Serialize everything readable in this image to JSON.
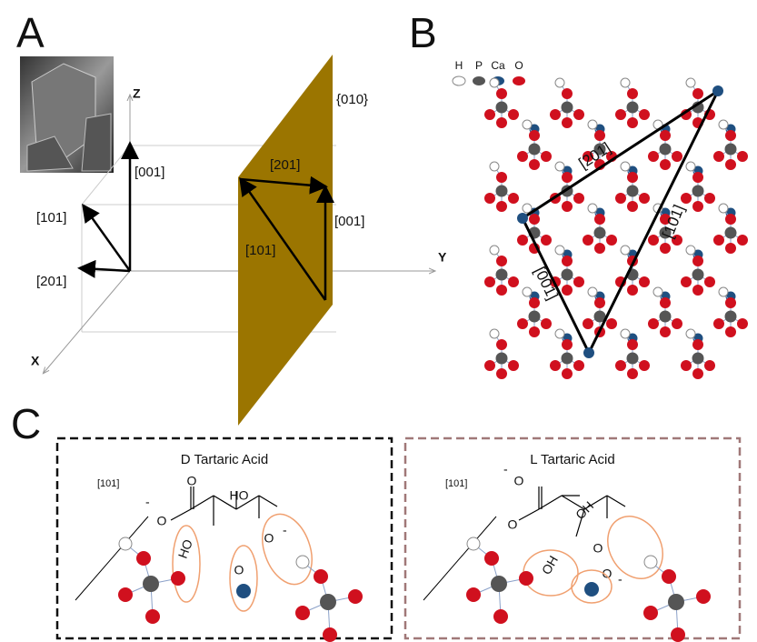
{
  "panel_a": {
    "label": "A",
    "axes": {
      "z": "Z",
      "y": "Y",
      "x": "X"
    },
    "origin_vectors": [
      "[001]",
      "[101]",
      "[201]"
    ],
    "plane_vectors": [
      "[201]",
      "[001]",
      "[101]"
    ],
    "plane": "{010}"
  },
  "panel_b": {
    "label": "B",
    "legend": [
      "H",
      "P",
      "Ca",
      "O"
    ],
    "vectors": [
      "[201]",
      "[101]",
      "[001]"
    ]
  },
  "panel_c": {
    "label": "C",
    "boxes": [
      {
        "title": "D Tartaric Acid",
        "direction": "[101]",
        "groups": [
          "O",
          "O",
          "HO",
          "HO",
          "O",
          "O"
        ],
        "charges": [
          "-",
          "-"
        ]
      },
      {
        "title": "L Tartaric Acid",
        "direction": "[101]",
        "groups": [
          "O",
          "O",
          "OH",
          "OH",
          "O",
          "O"
        ],
        "charges": [
          "-",
          "-"
        ]
      }
    ]
  }
}
